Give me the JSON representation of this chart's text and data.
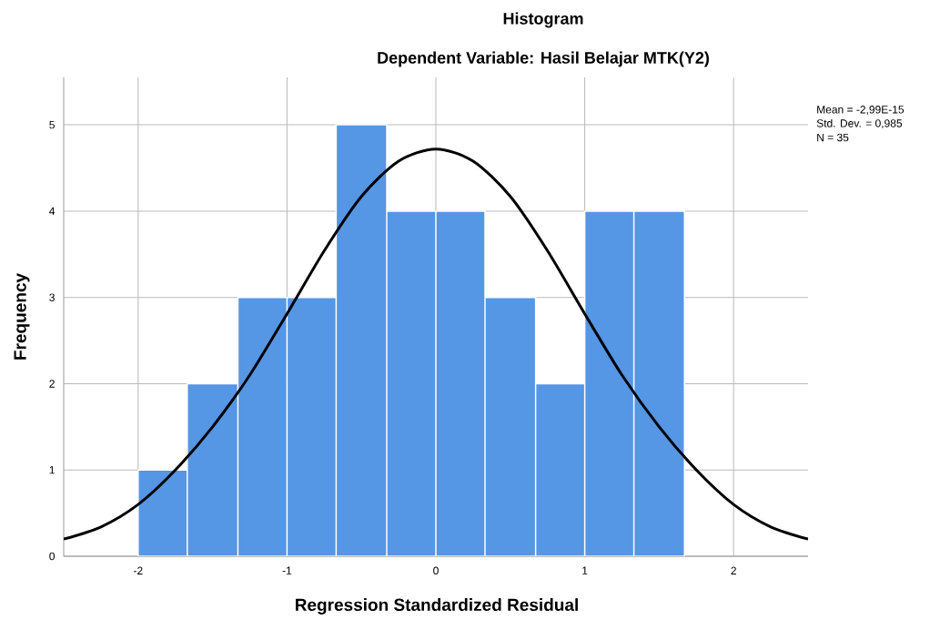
{
  "chart_data": {
    "type": "histogram",
    "title": "Histogram",
    "subtitle": "Dependent Variable: Hasil Belajar MTK(Y2)",
    "xlabel": "Regression Standardized Residual",
    "ylabel": "Frequency",
    "bins": [
      -2,
      -1.67,
      -1.33,
      -1,
      -0.67,
      -0.33,
      0,
      0.33,
      0.67,
      1,
      1.33,
      1.67
    ],
    "values": [
      1,
      2,
      3,
      3,
      5,
      4,
      4,
      3,
      2,
      4,
      4
    ],
    "color": "#5596e5",
    "series": [
      {
        "type": "line",
        "color": "#000000",
        "x": [
          -2.5,
          -2.25,
          -2,
          -1.75,
          -1.5,
          -1.25,
          -1,
          -0.75,
          -0.5,
          -0.25,
          0,
          0.25,
          0.5,
          0.75,
          1,
          1.25,
          1.5,
          1.75,
          2,
          2.25,
          2.5
        ],
        "values": [
          0.2,
          0.34,
          0.6,
          1.0,
          1.5,
          2.1,
          2.81,
          3.54,
          4.17,
          4.58,
          4.72,
          4.58,
          4.17,
          3.54,
          2.81,
          2.1,
          1.5,
          1.0,
          0.6,
          0.34,
          0.2
        ]
      }
    ],
    "annotations": [
      "Mean = -2,99E-15",
      "Std. Dev. = 0,985",
      "N = 35"
    ],
    "xlim": [
      -2.5,
      2.5
    ],
    "ylim": [
      0,
      5.55
    ],
    "xticks": [
      -2,
      -1,
      0,
      1,
      2
    ],
    "yticks": [
      0,
      1,
      2,
      3,
      4,
      5
    ],
    "grid": true
  }
}
